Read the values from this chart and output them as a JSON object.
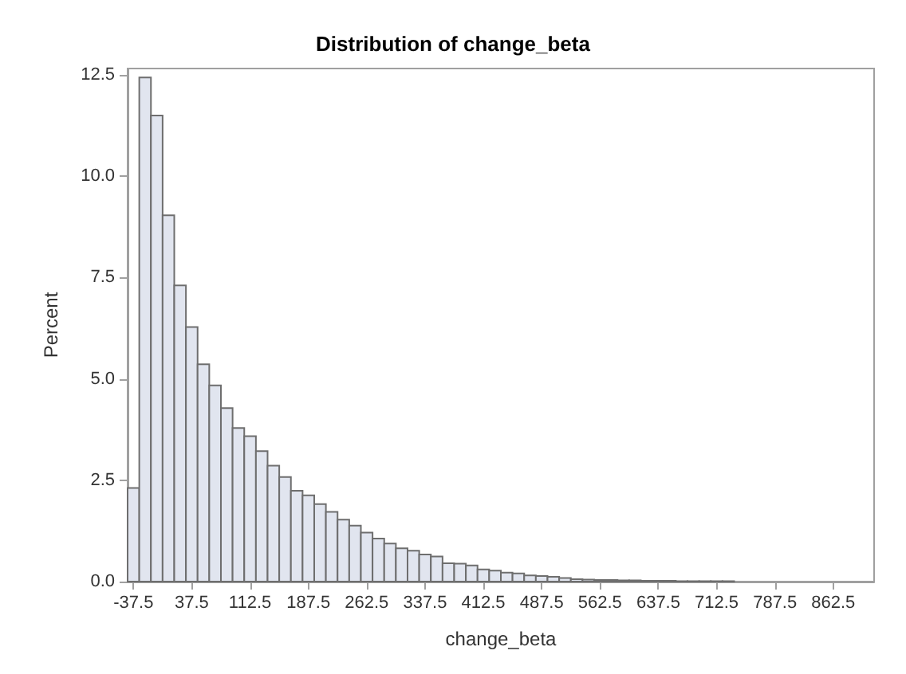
{
  "chart_data": {
    "type": "histogram",
    "title": "Distribution of change_beta",
    "xlabel": "change_beta",
    "ylabel": "Percent",
    "color": "#e1e5ef",
    "bins": [
      -45,
      -30,
      -15,
      0,
      15,
      30,
      45,
      60,
      75,
      90,
      105,
      120,
      135,
      150,
      165,
      180,
      195,
      210,
      225,
      240,
      255,
      270,
      285,
      300,
      315,
      330,
      345,
      360,
      375,
      390,
      405,
      420,
      435,
      450,
      465,
      480,
      495,
      510,
      525,
      540,
      555,
      570,
      585,
      600,
      615,
      630,
      645,
      660,
      675,
      690,
      705,
      720,
      735,
      750,
      765,
      780,
      795,
      810,
      825,
      840,
      855,
      870,
      885,
      900,
      915
    ],
    "values": [
      2.31,
      12.44,
      11.5,
      9.04,
      7.31,
      6.28,
      5.36,
      4.84,
      4.28,
      3.79,
      3.59,
      3.22,
      2.86,
      2.58,
      2.24,
      2.13,
      1.91,
      1.72,
      1.53,
      1.38,
      1.21,
      1.06,
      0.94,
      0.82,
      0.76,
      0.67,
      0.62,
      0.45,
      0.44,
      0.4,
      0.3,
      0.27,
      0.22,
      0.2,
      0.15,
      0.14,
      0.12,
      0.09,
      0.06,
      0.05,
      0.04,
      0.04,
      0.03,
      0.03,
      0.02,
      0.02,
      0.02,
      0.01,
      0.01,
      0.01,
      0.01,
      0.01,
      0,
      0,
      0,
      0,
      0,
      0,
      0,
      0,
      0,
      0,
      0,
      0
    ],
    "xlim": [
      -45,
      915
    ],
    "xticks": [
      -37.5,
      37.5,
      112.5,
      187.5,
      262.5,
      337.5,
      412.5,
      487.5,
      562.5,
      637.5,
      712.5,
      787.5,
      862.5
    ],
    "ylim": [
      0,
      12.66
    ],
    "yticks": [
      {
        "value": 0,
        "label": "0.0"
      },
      {
        "value": 2.5,
        "label": "2.5"
      },
      {
        "value": 5,
        "label": "5.0"
      },
      {
        "value": 7.5,
        "label": "7.5"
      },
      {
        "value": 10,
        "label": "10.0"
      },
      {
        "value": 12.5,
        "label": "12.5"
      }
    ],
    "grid": false
  }
}
